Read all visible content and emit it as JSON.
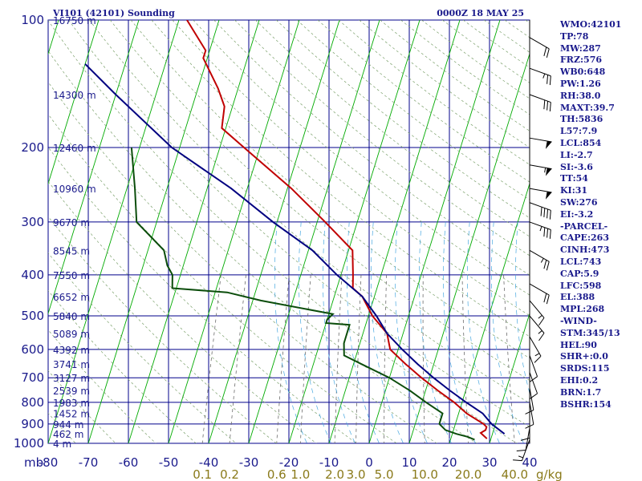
{
  "header": {
    "station": "VI101 (42101) Sounding",
    "valid_time": "0000Z 18 MAY 25"
  },
  "indices": [
    "WMO:42101",
    "TP:78",
    "MW:287",
    "FRZ:576",
    "WB0:648",
    "PW:1.26",
    "RH:38.0",
    "MAXT:39.7",
    "TH:5836",
    "L57:7.9",
    "LCL:854",
    "LI:-2.7",
    "SI:-3.6",
    "TT:54",
    "KI:31",
    "SW:276",
    "EI:-3.2",
    "-PARCEL-",
    "CAPE:263",
    "CINH:473",
    "LCL:743",
    "CAP:5.9",
    "LFC:598",
    "EL:388",
    "MPL:268",
    "-WIND-",
    "STM:345/13",
    "HEL:90",
    "SHR+:0.0",
    "SRDS:115",
    "EHI:0.2",
    "BRN:1.7",
    "BSHR:154"
  ],
  "chart_data": {
    "type": "line",
    "chart_kind": "skew-T log-P sounding",
    "y_axis": {
      "label": "mb",
      "scale": "log",
      "range": [
        100,
        1000
      ],
      "ticks": [
        100,
        200,
        300,
        400,
        500,
        600,
        700,
        800,
        900,
        1000
      ]
    },
    "x_axis": {
      "label": "",
      "unit": "°C",
      "range": [
        -80,
        40
      ],
      "ticks": [
        -80,
        -70,
        -60,
        -50,
        -40,
        -30,
        -20,
        -10,
        0,
        10,
        20,
        30,
        40
      ]
    },
    "mixing_ratio_axis": {
      "unit": "g/kg",
      "ticks": [
        "0.1",
        "0.2",
        "0.6",
        "1.0",
        "2.0",
        "3.0",
        "5.0",
        "10.0",
        "20.0",
        "40.0"
      ]
    },
    "height_labels": [
      {
        "p": 100,
        "text": "16750 m"
      },
      {
        "p": 150,
        "text": "14300 m"
      },
      {
        "p": 200,
        "text": "12460 m"
      },
      {
        "p": 250,
        "text": "10960 m"
      },
      {
        "p": 300,
        "text": "9670 m"
      },
      {
        "p": 350,
        "text": "8545 m"
      },
      {
        "p": 400,
        "text": "7550 m"
      },
      {
        "p": 450,
        "text": "6652 m"
      },
      {
        "p": 500,
        "text": "5840 m"
      },
      {
        "p": 550,
        "text": "5089 m"
      },
      {
        "p": 600,
        "text": "4392 m"
      },
      {
        "p": 650,
        "text": "3741 m"
      },
      {
        "p": 700,
        "text": "3127 m"
      },
      {
        "p": 750,
        "text": "2539 m"
      },
      {
        "p": 800,
        "text": "1983 m"
      },
      {
        "p": 850,
        "text": "1452 m"
      },
      {
        "p": 900,
        "text": "944 m"
      },
      {
        "p": 950,
        "text": "462 m"
      },
      {
        "p": 1000,
        "text": "4 m"
      }
    ],
    "grid": true,
    "series": [
      {
        "role": "temperature",
        "color": "#c00000",
        "points": [
          [
            100,
            -78
          ],
          [
            118,
            -71
          ],
          [
            123,
            -71
          ],
          [
            145,
            -65
          ],
          [
            160,
            -62
          ],
          [
            180,
            -61
          ],
          [
            200,
            -54
          ],
          [
            250,
            -39
          ],
          [
            300,
            -28
          ],
          [
            350,
            -19
          ],
          [
            400,
            -17
          ],
          [
            430,
            -16
          ],
          [
            450,
            -13
          ],
          [
            500,
            -9
          ],
          [
            550,
            -4
          ],
          [
            600,
            -2
          ],
          [
            650,
            3
          ],
          [
            700,
            8
          ],
          [
            750,
            13
          ],
          [
            800,
            18
          ],
          [
            850,
            22
          ],
          [
            900,
            27
          ],
          [
            915,
            28
          ],
          [
            930,
            28
          ],
          [
            945,
            27
          ],
          [
            960,
            28
          ],
          [
            975,
            29
          ]
        ]
      },
      {
        "role": "dewpoint",
        "color": "#0b4d0b",
        "points": [
          [
            200,
            -82
          ],
          [
            250,
            -78
          ],
          [
            300,
            -75
          ],
          [
            350,
            -66
          ],
          [
            380,
            -64
          ],
          [
            400,
            -62
          ],
          [
            430,
            -61
          ],
          [
            440,
            -47
          ],
          [
            460,
            -38
          ],
          [
            495,
            -19
          ],
          [
            510,
            -20
          ],
          [
            520,
            -20
          ],
          [
            525,
            -14
          ],
          [
            580,
            -14
          ],
          [
            620,
            -13
          ],
          [
            650,
            -8
          ],
          [
            700,
            0
          ],
          [
            750,
            6
          ],
          [
            800,
            11
          ],
          [
            850,
            16
          ],
          [
            880,
            16
          ],
          [
            900,
            16
          ],
          [
            930,
            18
          ],
          [
            950,
            21
          ],
          [
            965,
            24
          ],
          [
            980,
            26
          ]
        ]
      },
      {
        "role": "parcel",
        "color": "#000080",
        "points": [
          [
            127,
            -100
          ],
          [
            150,
            -90
          ],
          [
            200,
            -72
          ],
          [
            250,
            -54
          ],
          [
            300,
            -41
          ],
          [
            350,
            -29
          ],
          [
            400,
            -21
          ],
          [
            450,
            -13
          ],
          [
            500,
            -8
          ],
          [
            550,
            -4
          ],
          [
            600,
            1
          ],
          [
            650,
            6
          ],
          [
            700,
            11
          ],
          [
            750,
            16
          ],
          [
            800,
            21
          ],
          [
            850,
            26
          ],
          [
            900,
            29
          ],
          [
            950,
            33
          ]
        ]
      }
    ],
    "wind_barbs": [
      {
        "p": 110,
        "dir": 300,
        "kt": 20
      },
      {
        "p": 130,
        "dir": 290,
        "kt": 25
      },
      {
        "p": 150,
        "dir": 290,
        "kt": 30
      },
      {
        "p": 190,
        "dir": 280,
        "kt": 50
      },
      {
        "p": 220,
        "dir": 280,
        "kt": 55
      },
      {
        "p": 250,
        "dir": 280,
        "kt": 50
      },
      {
        "p": 270,
        "dir": 290,
        "kt": 40
      },
      {
        "p": 300,
        "dir": 290,
        "kt": 35
      },
      {
        "p": 350,
        "dir": 300,
        "kt": 25
      },
      {
        "p": 420,
        "dir": 300,
        "kt": 20
      },
      {
        "p": 460,
        "dir": 320,
        "kt": 15
      },
      {
        "p": 500,
        "dir": 320,
        "kt": 15
      },
      {
        "p": 560,
        "dir": 330,
        "kt": 15
      },
      {
        "p": 620,
        "dir": 340,
        "kt": 10
      },
      {
        "p": 680,
        "dir": 340,
        "kt": 10
      },
      {
        "p": 740,
        "dir": 350,
        "kt": 10
      },
      {
        "p": 800,
        "dir": 350,
        "kt": 10
      },
      {
        "p": 860,
        "dir": 0,
        "kt": 10
      },
      {
        "p": 920,
        "dir": 10,
        "kt": 10
      },
      {
        "p": 980,
        "dir": 20,
        "kt": 15
      }
    ],
    "colors": {
      "axis_blue": "#00008b",
      "isotherm_green": "#00aa00",
      "grid_bg": "#ffffff",
      "mixing": "#8a7a1a"
    }
  }
}
